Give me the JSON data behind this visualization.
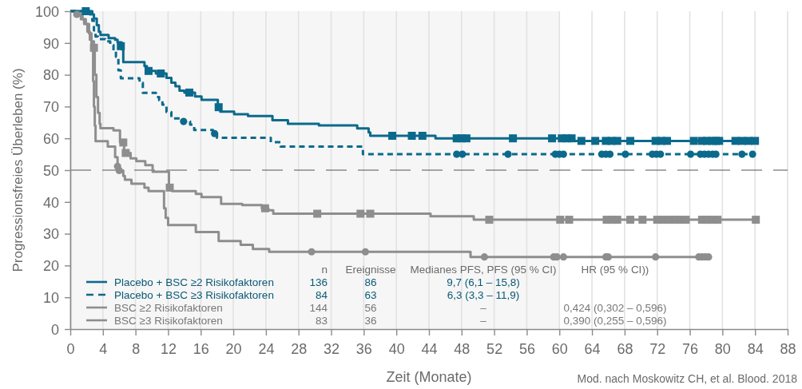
{
  "chart_data": {
    "type": "step",
    "xlabel": "Zeit (Monate)",
    "ylabel": "Progressionsfreies Überleben (%)",
    "xlim": [
      0,
      88
    ],
    "ylim": [
      0,
      100
    ],
    "xticks": [
      0,
      4,
      8,
      12,
      16,
      20,
      24,
      28,
      32,
      36,
      40,
      44,
      48,
      52,
      56,
      60,
      64,
      68,
      72,
      76,
      80,
      84,
      88
    ],
    "yticks": [
      0,
      10,
      20,
      30,
      40,
      50,
      60,
      70,
      80,
      90,
      100
    ],
    "grid": "x",
    "legend": "bottom left",
    "bands": [
      {
        "axis": "x",
        "from": 0,
        "to": 60,
        "color": "#f6f6f6"
      }
    ],
    "ref_lines": [
      {
        "axis": "y",
        "value": 50,
        "color": "#555555",
        "line_style": "dashed"
      }
    ],
    "series": [
      {
        "name": "Placebo + BSC ≥2 Risikofaktoren",
        "color": "#0b6a8c",
        "line_style": "solid",
        "x": [
          0,
          2.4,
          2.9,
          3.25,
          3.5,
          3.7,
          4.7,
          5.5,
          5.8,
          6.3,
          6.5,
          9.1,
          9.4,
          10.5,
          11.8,
          12.4,
          12.9,
          13.4,
          14.0,
          15.3,
          16.1,
          18.1,
          18.4,
          20.1,
          21.8,
          24.8,
          26.7,
          30.5,
          35.2,
          36.6,
          36.8,
          44.8,
          61.8,
          84.4
        ],
        "values": [
          100,
          99,
          97.7,
          95.6,
          93.5,
          92.5,
          91.5,
          91,
          90.2,
          88,
          84,
          82.7,
          81.2,
          80.4,
          79,
          77.5,
          76.4,
          75,
          74.4,
          73.2,
          72.1,
          69.8,
          68.4,
          67.6,
          67,
          65.7,
          64.6,
          64.1,
          63.1,
          61.9,
          60.8,
          60,
          59.2,
          59.2
        ]
      },
      {
        "name": "Placebo + BSC ≥3 Risikofaktoren",
        "color": "#0b6a8c",
        "line_style": "dashed",
        "x": [
          0,
          2.7,
          2.9,
          3.1,
          3.4,
          4.3,
          4.9,
          5.3,
          5.6,
          5.9,
          6.2,
          8.5,
          8.9,
          10.5,
          10.9,
          11.3,
          11.8,
          12.4,
          13.8,
          14.7,
          15.2,
          17.5,
          18.0,
          24.6,
          25.8,
          35.9,
          83.7
        ],
        "values": [
          100,
          97,
          94,
          92,
          91.2,
          90.5,
          89.4,
          87.7,
          85.7,
          81.4,
          78.9,
          77.5,
          74.3,
          73.0,
          72.0,
          70.6,
          68.3,
          66.3,
          65.3,
          64.3,
          62.6,
          61.5,
          60.2,
          58.8,
          57.4,
          55.0,
          55.0
        ]
      },
      {
        "name": "BSC ≥2 Risikofaktoren",
        "color": "#8e8e8e",
        "line_style": "solid",
        "x": [
          0,
          1.0,
          1.5,
          1.9,
          2.3,
          2.6,
          2.9,
          3.0,
          3.2,
          3.4,
          3.6,
          3.7,
          5.3,
          6.1,
          6.6,
          7.4,
          8.1,
          9.2,
          10.1,
          12.1,
          12.5,
          15.4,
          16.1,
          18.5,
          21.1,
          23.5,
          24.3,
          24.9,
          44.2,
          49.5,
          84.1
        ],
        "values": [
          100,
          99,
          97.5,
          96,
          93,
          90.5,
          88.5,
          80,
          73,
          68,
          64.6,
          63.2,
          62.5,
          58.7,
          55.4,
          53.7,
          52.8,
          51.6,
          49.5,
          44.5,
          43.4,
          42.5,
          41.5,
          39.4,
          39.0,
          38.0,
          37.4,
          36.3,
          35.5,
          34.4,
          34.4
        ]
      },
      {
        "name": "BSC ≥3 Risikofaktoren",
        "color": "#8e8e8e",
        "line_style": "solid",
        "x": [
          0,
          0.8,
          1.3,
          1.7,
          2.1,
          2.4,
          2.6,
          2.8,
          2.9,
          3.0,
          3.1,
          4.6,
          5.5,
          5.8,
          6.0,
          6.5,
          6.7,
          7.5,
          9.1,
          9.6,
          11.5,
          11.7,
          12.0,
          15.4,
          18.2,
          20.9,
          22.4,
          24.4,
          49.1,
          78.5
        ],
        "values": [
          100,
          99,
          97.5,
          96,
          93.5,
          91,
          88,
          78,
          70,
          64,
          59.1,
          57.4,
          54.1,
          51.2,
          49.9,
          48.2,
          47.0,
          45.7,
          44.5,
          43.4,
          38,
          35,
          32.7,
          30.5,
          27.7,
          26.5,
          25.2,
          24.3,
          22.7,
          22.7
        ]
      },
      {
        "type": "scatter",
        "color": "#0b6a8c",
        "marker": "square",
        "x": [
          1.9,
          6.2,
          9.6,
          11.1,
          14.6,
          18.2,
          39.5,
          41.9,
          43.2,
          47.4,
          48.0,
          48.6,
          54.3,
          59.1,
          60.3,
          60.9,
          61.5,
          62.7,
          64.4,
          65.7,
          66.4,
          67.1,
          68.7,
          71.8,
          72.5,
          73.2,
          76.5,
          77.5,
          78.1,
          78.7,
          79.2,
          79.6,
          81.6,
          82.4,
          83.2,
          84.0
        ],
        "values": [
          100,
          89,
          81.2,
          80.4,
          74.4,
          69.8,
          60.8,
          60.8,
          60.8,
          60,
          60,
          60,
          60,
          60,
          60,
          60,
          60,
          59.2,
          59.2,
          59.2,
          59.2,
          59.2,
          59.2,
          59.2,
          59.2,
          59.2,
          59.2,
          59.2,
          59.2,
          59.2,
          59.2,
          59.2,
          59.2,
          59.2,
          59.2,
          59.2
        ]
      },
      {
        "type": "scatter",
        "color": "#0b6a8c",
        "marker": "circle",
        "x": [
          13.9,
          17.7,
          47.4,
          48.1,
          53.7,
          59.5,
          60.0,
          60.5,
          65.2,
          65.7,
          66.2,
          68.1,
          71.4,
          71.9,
          72.4,
          76.1,
          77.3,
          77.8,
          78.3,
          78.8,
          79.2,
          82.4,
          83.7
        ],
        "values": [
          65.3,
          61.5,
          55.0,
          55.0,
          55.0,
          55.0,
          55.0,
          55.0,
          55.0,
          55.0,
          55.0,
          55.0,
          55.0,
          55.0,
          55.0,
          55.0,
          55.0,
          55.0,
          55.0,
          55.0,
          55.0,
          55.0,
          55.0
        ]
      },
      {
        "type": "scatter",
        "color": "#8e8e8e",
        "marker": "square",
        "x": [
          2.9,
          6.5,
          6.8,
          12.2,
          23.9,
          30.3,
          35.6,
          36.8,
          51.4,
          60.1,
          61.2,
          65.8,
          66.4,
          67.1,
          68.7,
          70.2,
          72.0,
          72.7,
          73.4,
          74.2,
          74.8,
          75.5,
          77.5,
          78.1,
          78.8,
          79.4,
          84.1
        ],
        "values": [
          88.5,
          58.7,
          55.4,
          44.5,
          38.0,
          36.3,
          36.3,
          36.3,
          34.4,
          34.4,
          34.4,
          34.4,
          34.4,
          34.4,
          34.4,
          34.4,
          34.4,
          34.4,
          34.4,
          34.4,
          34.4,
          34.4,
          34.4,
          34.4,
          34.4,
          34.4,
          34.4
        ]
      },
      {
        "type": "scatter",
        "color": "#8e8e8e",
        "marker": "circle",
        "x": [
          0.8,
          5.8,
          6.0,
          29.6,
          36.2,
          50.8,
          59.3,
          59.7,
          60.5,
          65.7,
          66.0,
          71.8,
          77.1,
          77.5,
          77.9,
          78.3
        ],
        "values": [
          99,
          51.2,
          49.9,
          24.3,
          24.3,
          22.7,
          22.7,
          22.7,
          22.7,
          22.7,
          22.7,
          22.7,
          22.7,
          22.7,
          22.7,
          22.7
        ]
      }
    ],
    "annotations": [
      "n",
      "Ereignisse",
      "Medianes PFS, PFS (95 % CI)",
      "HR (95 % CI))",
      "136",
      "86",
      "9,7 (6,1 – 15,8)",
      "84",
      "63",
      "6,3 (3,3 – 11,9)",
      "144",
      "56",
      "–",
      "0,424 (0,302 – 0,596)",
      "83",
      "36",
      "–",
      "0,390 (0,255 – 0,596)",
      "Mod. nach Moskowitz CH, et al. Blood. 2018"
    ]
  }
}
